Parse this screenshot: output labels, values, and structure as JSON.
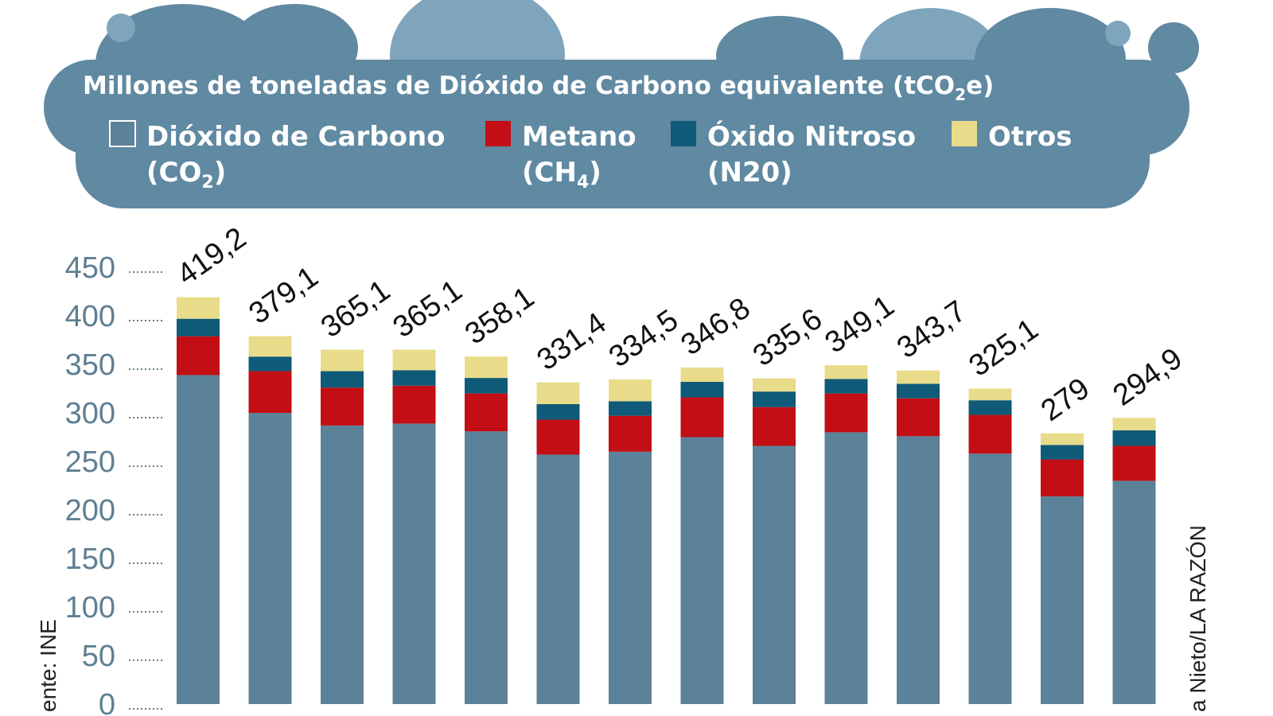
{
  "chart_data": {
    "type": "bar",
    "stacked": true,
    "title": "Millones de toneladas de Dióxido de Carbono equivalente (tCO₂e)",
    "ylim": [
      0,
      450
    ],
    "yticks": [
      "0",
      "50",
      "100",
      "150",
      "200",
      "250",
      "300",
      "350",
      "400",
      "450"
    ],
    "grid": false,
    "legend_placement": "top",
    "series": [
      {
        "name": "Dióxido de Carbono (CO₂)",
        "color": "#5b8299",
        "values": [
          339,
          300,
          287,
          289,
          281,
          257,
          260,
          275,
          266,
          280,
          276,
          258,
          214,
          230
        ]
      },
      {
        "name": "Metano (CH₄)",
        "color": "#c20e14",
        "values": [
          40,
          43,
          39,
          39,
          39,
          36,
          37,
          41,
          40,
          40,
          39,
          40,
          38,
          36
        ]
      },
      {
        "name": "Óxido Nitroso (N20)",
        "color": "#0f5a78",
        "values": [
          18,
          15,
          17,
          16,
          16,
          16,
          15,
          16,
          16,
          15,
          15,
          15,
          15,
          16
        ]
      },
      {
        "name": "Otros",
        "color": "#e8dc8a",
        "values": [
          22.2,
          21.1,
          22.1,
          21.1,
          22.1,
          22.4,
          22.5,
          14.8,
          13.6,
          14.1,
          13.7,
          12.1,
          12,
          12.9
        ]
      }
    ],
    "totals": [
      "419,2",
      "379,1",
      "365,1",
      "365,1",
      "358,1",
      "331,4",
      "334,5",
      "346,8",
      "335,6",
      "349,1",
      "343,7",
      "325,1",
      "279",
      "294,9"
    ],
    "totals_values": [
      419.2,
      379.1,
      365.1,
      365.1,
      358.1,
      331.4,
      334.5,
      346.8,
      335.6,
      349.1,
      343.7,
      325.1,
      279,
      294.9
    ]
  },
  "legend": [
    {
      "line1": "Dióxido de Carbono",
      "line2": "(CO",
      "sub": "2",
      "end": ")"
    },
    {
      "line1": "Metano",
      "line2": "(CH",
      "sub": "4",
      "end": ")"
    },
    {
      "line1": "Óxido Nitroso",
      "line2": "(N20)",
      "sub": "",
      "end": ""
    },
    {
      "line1": "Otros",
      "line2": "",
      "sub": "",
      "end": ""
    }
  ],
  "title_parts": {
    "main": "Millones de toneladas de Dióxido de Carbono equivalente (tCO",
    "sub": "2",
    "end": "e)"
  },
  "source": "ente: INE",
  "credit": "a Nieto/LA RAZÓN"
}
